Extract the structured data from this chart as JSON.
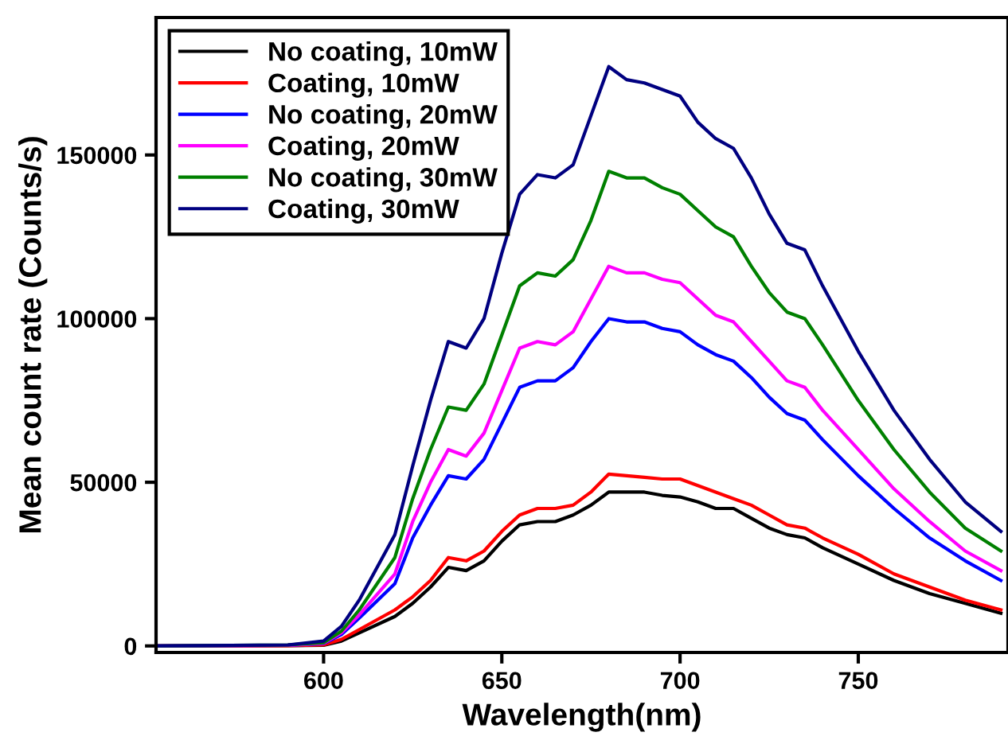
{
  "chart_data": {
    "type": "line",
    "xlabel": "Wavelength(nm)",
    "ylabel": "Mean count rate (Counts/s)",
    "x": [
      553,
      590,
      600,
      605,
      610,
      620,
      625,
      630,
      635,
      640,
      645,
      650,
      655,
      660,
      665,
      670,
      675,
      680,
      685,
      690,
      695,
      700,
      705,
      710,
      715,
      720,
      725,
      730,
      735,
      740,
      750,
      760,
      770,
      780,
      790
    ],
    "series": [
      {
        "name": "No coating, 10mW",
        "color": "#000000",
        "values": [
          0,
          100,
          200,
          1500,
          4000,
          9000,
          13000,
          18000,
          24000,
          23000,
          26000,
          32000,
          37000,
          38000,
          38000,
          40000,
          43000,
          47000,
          47000,
          47000,
          46000,
          45500,
          44000,
          42000,
          42000,
          39000,
          36000,
          34000,
          33000,
          30000,
          25000,
          20000,
          16000,
          13000,
          10000
        ]
      },
      {
        "name": "Coating, 10mW",
        "color": "#ff0000",
        "values": [
          0,
          100,
          300,
          2000,
          5000,
          11000,
          15000,
          20000,
          27000,
          26000,
          29000,
          35000,
          40000,
          42000,
          42000,
          43000,
          47000,
          52500,
          52000,
          51500,
          51000,
          51000,
          49000,
          47000,
          45000,
          43000,
          40000,
          37000,
          36000,
          33000,
          28000,
          22000,
          18000,
          14000,
          11000
        ]
      },
      {
        "name": "No coating, 20mW",
        "color": "#0000ff",
        "values": [
          0,
          200,
          700,
          3500,
          8500,
          19000,
          33000,
          43000,
          52000,
          51000,
          57000,
          68000,
          79000,
          81000,
          81000,
          85000,
          93000,
          100000,
          99000,
          99000,
          97000,
          96000,
          92000,
          89000,
          87000,
          82000,
          76000,
          71000,
          69000,
          63000,
          52000,
          42000,
          33000,
          26000,
          20000
        ]
      },
      {
        "name": "Coating, 20mW",
        "color": "#ff00ff",
        "values": [
          0,
          200,
          800,
          4000,
          9500,
          22000,
          38000,
          50000,
          60000,
          58000,
          65000,
          78000,
          91000,
          93000,
          92000,
          96000,
          106000,
          116000,
          114000,
          114000,
          112000,
          111000,
          106000,
          101000,
          99000,
          93000,
          87000,
          81000,
          79000,
          72000,
          60000,
          48000,
          38000,
          29000,
          23000
        ]
      },
      {
        "name": "No coating, 30mW",
        "color": "#008000",
        "values": [
          0,
          300,
          1000,
          4500,
          11000,
          27000,
          45000,
          60000,
          73000,
          72000,
          80000,
          95000,
          110000,
          114000,
          113000,
          118000,
          130000,
          145000,
          143000,
          143000,
          140000,
          138000,
          133000,
          128000,
          125000,
          116000,
          108000,
          102000,
          100000,
          92000,
          75000,
          60000,
          47000,
          36000,
          29000
        ]
      },
      {
        "name": "Coating, 30mW",
        "color": "#000080",
        "values": [
          0,
          300,
          1500,
          6000,
          14000,
          34000,
          55000,
          75000,
          93000,
          91000,
          100000,
          120000,
          138000,
          144000,
          143000,
          147000,
          162000,
          177000,
          173000,
          172000,
          170000,
          168000,
          160000,
          155000,
          152000,
          143000,
          132000,
          123000,
          121000,
          110000,
          90000,
          72000,
          57000,
          44000,
          35000
        ]
      }
    ],
    "xlim": [
      553,
      792
    ],
    "ylim": [
      -2000,
      192000
    ],
    "xticks": [
      600,
      650,
      700,
      750
    ],
    "yticks": [
      0,
      50000,
      100000,
      150000
    ],
    "grid": false,
    "legend": "top left",
    "marker": "none",
    "line_style": "solid"
  }
}
